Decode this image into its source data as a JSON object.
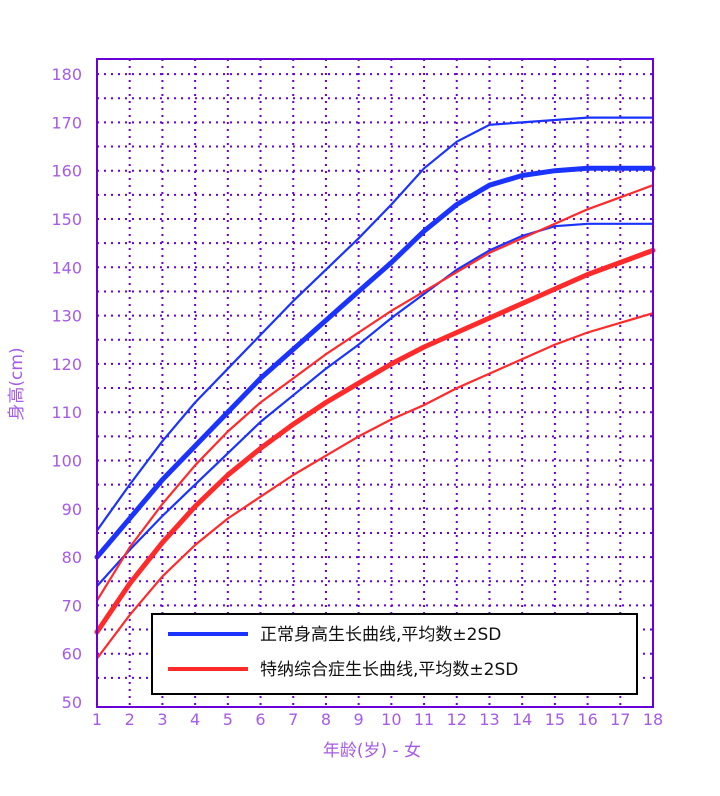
{
  "chart_data": {
    "type": "line",
    "xlabel": "年龄(岁) - 女",
    "ylabel": "身高(cm)",
    "xlim": [
      1,
      18
    ],
    "ylim": [
      50,
      185
    ],
    "x_ticks": [
      1,
      2,
      3,
      4,
      5,
      6,
      7,
      8,
      9,
      10,
      11,
      12,
      13,
      14,
      15,
      16,
      17,
      18
    ],
    "y_ticks": [
      50,
      60,
      70,
      80,
      90,
      100,
      110,
      120,
      130,
      140,
      150,
      160,
      170,
      180
    ],
    "grid": true,
    "legend_position": "bottom-right",
    "colors": {
      "axis": "#6a00d8",
      "grid": "#6a00d8",
      "tick": "#a65ae8",
      "normal": "#1a33ff",
      "turner": "#ff2a2a"
    },
    "legend": [
      {
        "label": "正常身高生长曲线,平均数±2SD",
        "color": "#1a33ff"
      },
      {
        "label": "特纳综合症生长曲线,平均数±2SD",
        "color": "#ff2a2a"
      }
    ],
    "series": [
      {
        "color": "#1a33ff",
        "weight": "thin",
        "x": [
          1,
          2,
          3,
          4,
          5,
          6,
          7,
          8,
          9,
          10,
          11,
          12,
          13,
          14,
          15,
          16,
          17,
          18
        ],
        "y": [
          85.5,
          95,
          104,
          112,
          119,
          126,
          133,
          139.5,
          146,
          153,
          160.5,
          166,
          169.5,
          170,
          170.5,
          171,
          171,
          171
        ]
      },
      {
        "color": "#1a33ff",
        "weight": "thick",
        "x": [
          1,
          2,
          3,
          4,
          5,
          6,
          7,
          8,
          9,
          10,
          11,
          12,
          13,
          14,
          15,
          16,
          17,
          18
        ],
        "y": [
          80,
          88,
          96,
          103,
          110,
          117,
          123,
          129,
          135,
          141,
          147.5,
          153,
          157,
          159,
          160,
          160.5,
          160.5,
          160.5
        ]
      },
      {
        "color": "#1a33ff",
        "weight": "thin",
        "x": [
          1,
          2,
          3,
          4,
          5,
          6,
          7,
          8,
          9,
          10,
          11,
          12,
          13,
          14,
          15,
          16,
          17,
          18
        ],
        "y": [
          74,
          81.5,
          88.5,
          95,
          101.5,
          108,
          113.5,
          119,
          124,
          129.5,
          134.5,
          139.5,
          143.5,
          146.5,
          148.5,
          149,
          149,
          149
        ]
      },
      {
        "color": "#ff2a2a",
        "weight": "thin",
        "x": [
          1,
          2,
          3,
          4,
          5,
          6,
          7,
          8,
          9,
          10,
          11,
          12,
          13,
          14,
          15,
          16,
          17,
          18
        ],
        "y": [
          71,
          82,
          91,
          99,
          106,
          112,
          117,
          122,
          126.5,
          131,
          135,
          139,
          143,
          146,
          149,
          152,
          154.5,
          157
        ]
      },
      {
        "color": "#ff2a2a",
        "weight": "thick",
        "x": [
          1,
          2,
          3,
          4,
          5,
          6,
          7,
          8,
          9,
          10,
          11,
          12,
          13,
          14,
          15,
          16,
          17,
          18
        ],
        "y": [
          64.5,
          74.5,
          83,
          90.5,
          97,
          102.5,
          107.5,
          112,
          116,
          120,
          123.5,
          126.5,
          129.5,
          132.5,
          135.5,
          138.5,
          141,
          143.5
        ]
      },
      {
        "color": "#ff2a2a",
        "weight": "thin",
        "x": [
          1,
          2,
          3,
          4,
          5,
          6,
          7,
          8,
          9,
          10,
          11,
          12,
          13,
          14,
          15,
          16,
          17,
          18
        ],
        "y": [
          59,
          68,
          76,
          82.5,
          88,
          92.5,
          97,
          101,
          105,
          108.5,
          111.5,
          115,
          118,
          121,
          124,
          126.5,
          128.5,
          130.5
        ]
      }
    ]
  }
}
